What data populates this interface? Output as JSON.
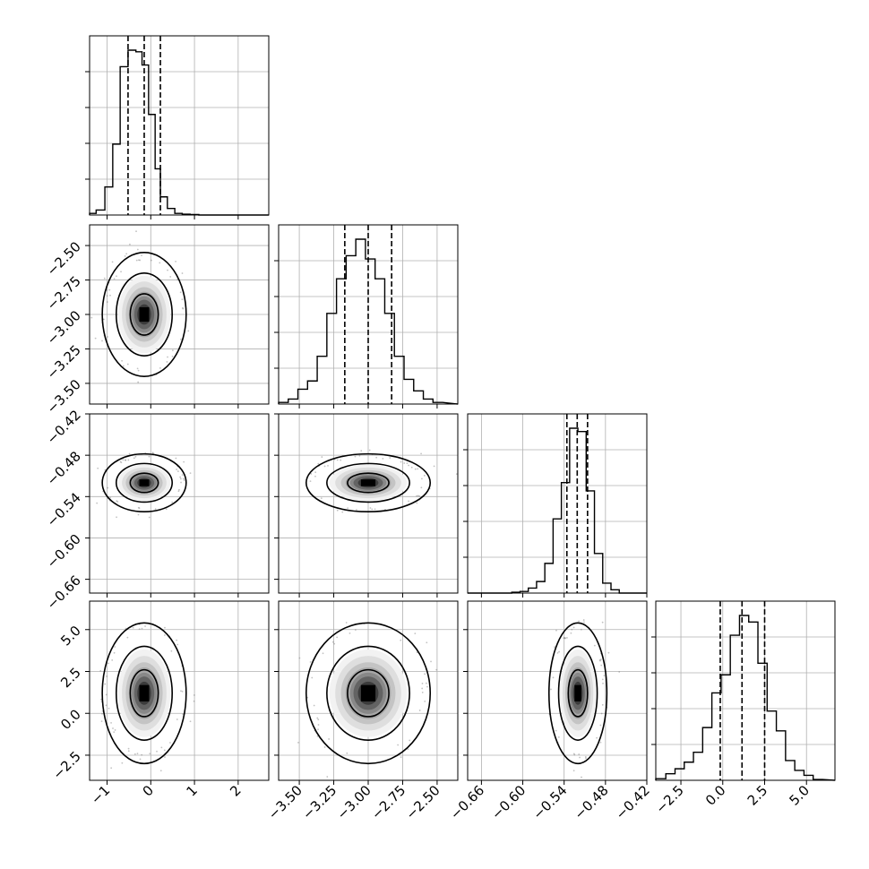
{
  "chart_data": {
    "type": "corner",
    "grid": true,
    "parameters": [
      {
        "range": [
          -1.4,
          2.7
        ],
        "ticks": [
          -1,
          0,
          1,
          2
        ],
        "tick_labels": [
          "−1",
          "0",
          "1",
          "2"
        ],
        "mean": -0.15,
        "sd": 0.32,
        "quantiles": [
          -0.52,
          -0.15,
          0.22
        ],
        "hist_bins": [
          -1.4,
          -1.25,
          -1.05,
          -0.87,
          -0.7,
          -0.52,
          -0.34,
          -0.2,
          -0.05,
          0.1,
          0.22,
          0.38,
          0.55,
          0.72,
          0.9,
          1.1,
          1.3,
          1.5
        ],
        "hist_counts": [
          1,
          3,
          17,
          43,
          90,
          100,
          99,
          91,
          61,
          28,
          11,
          4,
          1,
          0.5,
          0.3,
          0,
          0
        ]
      },
      {
        "range": [
          -3.65,
          -2.35
        ],
        "ticks": [
          -3.5,
          -3.25,
          -3.0,
          -2.75,
          -2.5
        ],
        "tick_labels": [
          "−3.50",
          "−3.25",
          "−3.00",
          "−2.75",
          "−2.50"
        ],
        "mean": -3.0,
        "sd": 0.15,
        "quantiles": [
          -3.17,
          -3.0,
          -2.83
        ],
        "hist_bins": [
          -3.65,
          -3.58,
          -3.51,
          -3.44,
          -3.37,
          -3.3,
          -3.23,
          -3.16,
          -3.09,
          -3.02,
          -2.95,
          -2.88,
          -2.81,
          -2.74,
          -2.67,
          -2.6,
          -2.53,
          -2.46
        ],
        "hist_counts": [
          1,
          3,
          9,
          14,
          29,
          55,
          76,
          90,
          100,
          88,
          76,
          55,
          29,
          15,
          8,
          3,
          1
        ]
      },
      {
        "range": [
          -0.68,
          -0.42
        ],
        "ticks": [
          -0.66,
          -0.6,
          -0.54,
          -0.48,
          -0.42
        ],
        "tick_labels": [
          "−0.66",
          "−0.60",
          "−0.54",
          "−0.48",
          "−0.42"
        ],
        "mean": -0.52,
        "sd": 0.014,
        "quantiles": [
          -0.536,
          -0.521,
          -0.506
        ],
        "hist_bins": [
          -0.68,
          -0.664,
          -0.652,
          -0.64,
          -0.628,
          -0.616,
          -0.604,
          -0.592,
          -0.58,
          -0.568,
          -0.556,
          -0.544,
          -0.532,
          -0.52,
          -0.508,
          -0.496,
          -0.484,
          -0.472,
          -0.46,
          -0.42
        ],
        "hist_counts": [
          0,
          0,
          0,
          0,
          0,
          0.5,
          1,
          3,
          7,
          18,
          45,
          67,
          100,
          98,
          62,
          24,
          6,
          2,
          0
        ]
      },
      {
        "range": [
          -4.0,
          6.7
        ],
        "ticks": [
          -2.5,
          0.0,
          2.5,
          5.0
        ],
        "tick_labels": [
          "−2.5",
          "0.0",
          "2.5",
          "5.0"
        ],
        "mean": 1.2,
        "sd": 1.4,
        "quantiles": [
          -0.15,
          1.15,
          2.5
        ],
        "hist_bins": [
          -4.0,
          -3.4,
          -2.85,
          -2.3,
          -1.75,
          -1.2,
          -0.65,
          -0.1,
          0.45,
          1.0,
          1.55,
          2.1,
          2.65,
          3.2,
          3.75,
          4.3,
          4.85,
          5.4,
          5.95
        ],
        "hist_counts": [
          1,
          4,
          7,
          11,
          17,
          32,
          53,
          64,
          88,
          100,
          96,
          71,
          42,
          30,
          12,
          6,
          3,
          0.5
        ]
      }
    ],
    "correlations": [
      0,
      0,
      0,
      0,
      0,
      0
    ],
    "contour_levels": [
      0.393,
      0.865,
      0.989
    ],
    "n_scatter_points": 1500
  }
}
